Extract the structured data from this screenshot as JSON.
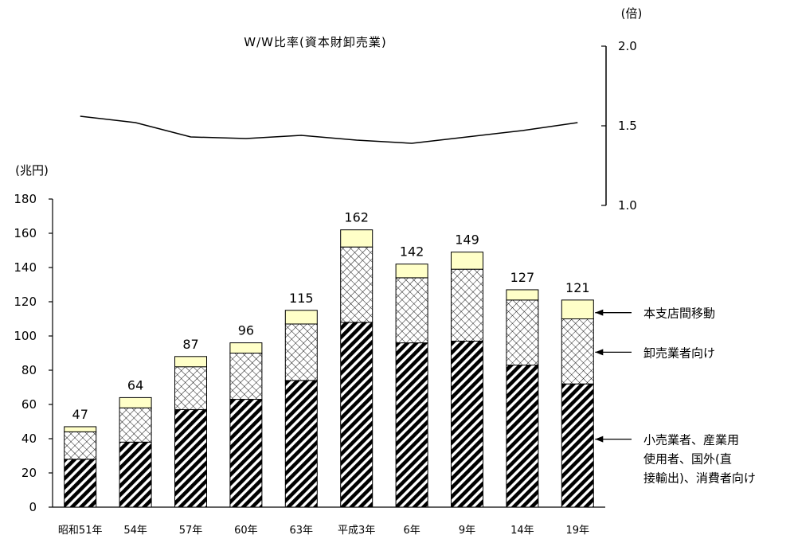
{
  "chart_data": [
    {
      "type": "line",
      "title": "W/W比率(資本財卸売業)",
      "unit": "(倍)",
      "categories": [
        "昭和51年",
        "54年",
        "57年",
        "60年",
        "63年",
        "平成3年",
        "6年",
        "9年",
        "14年",
        "19年"
      ],
      "values": [
        1.56,
        1.52,
        1.43,
        1.42,
        1.44,
        1.41,
        1.39,
        1.43,
        1.47,
        1.52
      ],
      "ylim": [
        1.0,
        2.0
      ],
      "yticks": [
        "1.0",
        "1.5",
        "2.0"
      ],
      "color": "#000000"
    },
    {
      "type": "bar",
      "stacked": true,
      "unit": "(兆円)",
      "categories": [
        "昭和51年",
        "54年",
        "57年",
        "60年",
        "63年",
        "平成3年",
        "6年",
        "9年",
        "14年",
        "19年"
      ],
      "ylim": [
        0,
        180
      ],
      "yticks": [
        "0",
        "20",
        "40",
        "60",
        "80",
        "100",
        "120",
        "140",
        "160",
        "180"
      ],
      "totals": [
        "47",
        "64",
        "87",
        "96",
        "115",
        "162",
        "142",
        "149",
        "127",
        "121"
      ],
      "series": [
        {
          "name": "小売業者、産業用使用者、国外(直接輸出)、消費者向け",
          "name_lines": [
            "小売業者、産業用",
            "使用者、国外(直",
            "接輸出)、消費者向け"
          ],
          "values": [
            28,
            38,
            57,
            63,
            74,
            108,
            96,
            97,
            83,
            72
          ],
          "pattern": "diagonal-hatch"
        },
        {
          "name": "卸売業者向け",
          "name_lines": [
            "卸売業者向け"
          ],
          "values": [
            16,
            20,
            25,
            27,
            33,
            44,
            38,
            42,
            38,
            38
          ],
          "pattern": "crosshatch"
        },
        {
          "name": "本支店間移動",
          "name_lines": [
            "本支店間移動"
          ],
          "values": [
            3,
            6,
            6,
            6,
            8,
            10,
            8,
            10,
            6,
            11
          ],
          "color": "#ffffc8"
        }
      ]
    }
  ]
}
